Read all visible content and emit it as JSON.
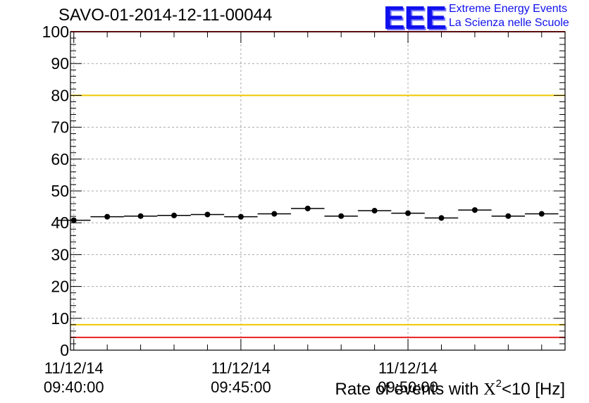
{
  "header": {
    "run_title": "SAVO-01-2014-12-11-00044",
    "logo_text": "EEE",
    "org_line1": "Extreme Energy Events",
    "org_line2": "La Scienza nelle Scuole"
  },
  "colors": {
    "limit_high": "#e82020",
    "limit_warn": "#f0c800",
    "marker": "#000000",
    "grid": "#aaaaaa",
    "brand": "#1010ee"
  },
  "chart_data": {
    "type": "scatter",
    "title": "SAVO-01-2014-12-11-00044",
    "xlabel_prefix": "Rate of events with ",
    "xlabel_symbol": "X",
    "xlabel_exp": "2",
    "xlabel_suffix": "<10 [Hz]",
    "ylabel": "",
    "ylim": [
      0,
      100
    ],
    "yticks": [
      "0",
      "10",
      "20",
      "30",
      "40",
      "50",
      "60",
      "70",
      "80",
      "90",
      "100"
    ],
    "x_range_min": [
      -0.1,
      14.7
    ],
    "xtick_positions_min": [
      0,
      5,
      10
    ],
    "xtick_labels": [
      {
        "date": "11/12/14",
        "time": "09:40:00"
      },
      {
        "date": "11/12/14",
        "time": "09:45:00"
      },
      {
        "date": "11/12/14",
        "time": "09:50:00"
      }
    ],
    "bin_width_min": 1,
    "points": [
      {
        "x": 0,
        "y": 40.8
      },
      {
        "x": 1,
        "y": 41.9
      },
      {
        "x": 2,
        "y": 42.1
      },
      {
        "x": 3,
        "y": 42.3
      },
      {
        "x": 4,
        "y": 42.6
      },
      {
        "x": 5,
        "y": 41.9
      },
      {
        "x": 6,
        "y": 42.8
      },
      {
        "x": 7,
        "y": 44.5
      },
      {
        "x": 8,
        "y": 42.1
      },
      {
        "x": 9,
        "y": 43.8
      },
      {
        "x": 10,
        "y": 43.0
      },
      {
        "x": 11,
        "y": 41.5
      },
      {
        "x": 12,
        "y": 44.0
      },
      {
        "x": 13,
        "y": 42.1
      },
      {
        "x": 14,
        "y": 42.8
      }
    ],
    "reference_lines": [
      {
        "name": "upper-red-limit",
        "y": 100,
        "color": "#e82020"
      },
      {
        "name": "upper-yellow-limit",
        "y": 80,
        "color": "#f0c800"
      },
      {
        "name": "lower-yellow-limit",
        "y": 8,
        "color": "#f0c800"
      },
      {
        "name": "lower-red-limit",
        "y": 4,
        "color": "#e82020"
      }
    ],
    "grid": true
  }
}
